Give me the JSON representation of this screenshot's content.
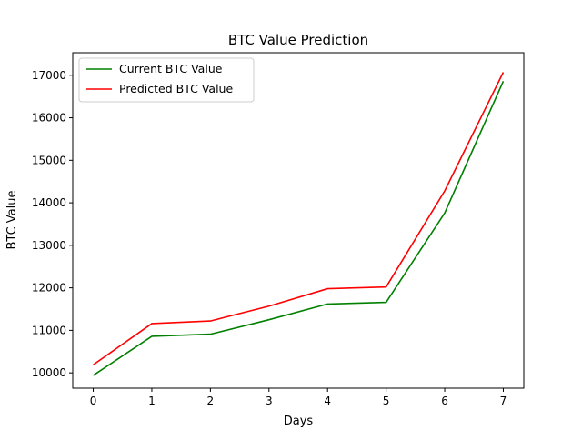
{
  "chart_data": {
    "type": "line",
    "title": "BTC Value Prediction",
    "xlabel": "Days",
    "ylabel": "BTC Value",
    "x": [
      0,
      1,
      2,
      3,
      4,
      5,
      6,
      7
    ],
    "xlim": [
      -0.35,
      7.35
    ],
    "ylim": [
      9640,
      17530
    ],
    "xticks": [
      0,
      1,
      2,
      3,
      4,
      5,
      6,
      7
    ],
    "yticks": [
      10000,
      11000,
      12000,
      13000,
      14000,
      15000,
      16000,
      17000
    ],
    "series": [
      {
        "name": "Current BTC Value",
        "color": "#008000",
        "values": [
          9940,
          10860,
          10910,
          11250,
          11620,
          11660,
          13760,
          16860
        ]
      },
      {
        "name": "Predicted BTC Value",
        "color": "#ff0000",
        "values": [
          10190,
          11160,
          11220,
          11570,
          11980,
          12020,
          14280,
          17070
        ]
      }
    ],
    "grid": false,
    "legend_position": "top-left"
  }
}
